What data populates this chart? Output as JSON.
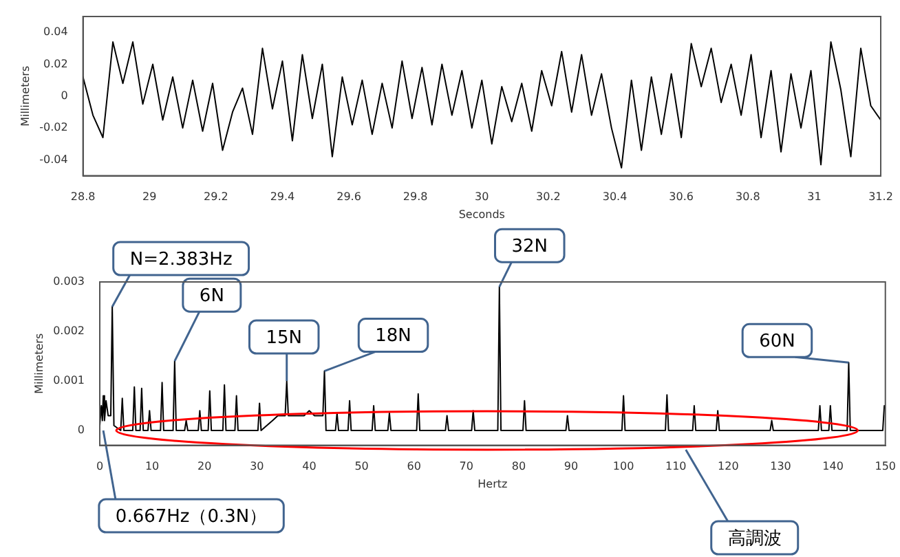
{
  "chart_data": [
    {
      "type": "line",
      "xlabel": "Seconds",
      "ylabel": "Millimeters",
      "color": "#000000",
      "marker": "none",
      "grid": false,
      "legend": false,
      "xlim": [
        28.8,
        31.2
      ],
      "xticks": [
        28.8,
        29,
        29.2,
        29.4,
        29.6,
        29.8,
        30,
        30.2,
        30.4,
        30.6,
        30.8,
        31,
        31.2
      ],
      "ylim": [
        -0.05,
        0.05
      ],
      "yticks": [
        -0.04,
        -0.02,
        0,
        0.02,
        0.04
      ],
      "x": [
        28.8,
        28.83,
        28.86,
        28.89,
        28.92,
        28.95,
        28.98,
        29.01,
        29.04,
        29.07,
        29.1,
        29.13,
        29.16,
        29.19,
        29.22,
        29.25,
        29.28,
        29.31,
        29.34,
        29.37,
        29.4,
        29.43,
        29.46,
        29.49,
        29.52,
        29.55,
        29.58,
        29.61,
        29.64,
        29.67,
        29.7,
        29.73,
        29.76,
        29.79,
        29.82,
        29.85,
        29.88,
        29.91,
        29.94,
        29.97,
        30,
        30.03,
        30.06,
        30.09,
        30.12,
        30.15,
        30.18,
        30.21,
        30.24,
        30.27,
        30.3,
        30.33,
        30.36,
        30.39,
        30.42,
        30.45,
        30.48,
        30.51,
        30.54,
        30.57,
        30.6,
        30.63,
        30.66,
        30.69,
        30.72,
        30.75,
        30.78,
        30.81,
        30.84,
        30.87,
        30.9,
        30.93,
        30.96,
        30.99,
        31.02,
        31.05,
        31.08,
        31.11,
        31.14,
        31.17,
        31.2
      ],
      "values": [
        0.012,
        -0.012,
        -0.026,
        0.034,
        0.008,
        0.034,
        -0.005,
        0.02,
        -0.015,
        0.012,
        -0.02,
        0.01,
        -0.022,
        0.008,
        -0.034,
        -0.01,
        0.005,
        -0.024,
        0.03,
        -0.008,
        0.022,
        -0.028,
        0.026,
        -0.014,
        0.02,
        -0.038,
        0.012,
        -0.018,
        0.01,
        -0.024,
        0.008,
        -0.02,
        0.022,
        -0.014,
        0.018,
        -0.018,
        0.02,
        -0.012,
        0.016,
        -0.02,
        0.01,
        -0.03,
        0.006,
        -0.016,
        0.008,
        -0.022,
        0.016,
        -0.006,
        0.028,
        -0.01,
        0.026,
        -0.012,
        0.014,
        -0.02,
        -0.045,
        0.01,
        -0.034,
        0.012,
        -0.024,
        0.014,
        -0.026,
        0.033,
        0.006,
        0.03,
        -0.004,
        0.02,
        -0.012,
        0.026,
        -0.026,
        0.016,
        -0.035,
        0.014,
        -0.02,
        0.016,
        -0.043,
        0.034,
        0.004,
        -0.038,
        0.03,
        -0.006,
        -0.015
      ]
    },
    {
      "type": "line",
      "xlabel": "Hertz",
      "ylabel": "Millimeters",
      "color": "#000000",
      "marker": "none",
      "grid": false,
      "legend": false,
      "xlim": [
        0,
        150
      ],
      "xticks": [
        0,
        10,
        20,
        30,
        40,
        50,
        60,
        70,
        80,
        90,
        100,
        110,
        120,
        130,
        140,
        150
      ],
      "ylim": [
        -0.0003,
        0.003
      ],
      "yticks": [
        0,
        0.001,
        0.002,
        0.003
      ],
      "x": [
        0,
        0.3,
        0.5,
        0.667,
        0.9,
        1.2,
        1.6,
        2.1,
        2.383,
        2.7,
        4,
        4.3,
        4.6,
        6.3,
        6.6,
        6.9,
        7.7,
        8,
        8.3,
        9.2,
        9.5,
        9.8,
        11.6,
        11.9,
        12.2,
        14,
        14.3,
        14.6,
        16.2,
        16.5,
        16.8,
        18.8,
        19.1,
        19.4,
        20.7,
        21,
        21.3,
        23.5,
        23.8,
        24.1,
        25.8,
        26.1,
        26.4,
        30.2,
        30.5,
        30.8,
        33,
        34,
        35.4,
        35.7,
        36,
        37,
        38,
        39,
        40,
        41,
        42.6,
        42.9,
        43.2,
        45,
        45.3,
        45.6,
        47.4,
        47.7,
        48,
        52,
        52.3,
        52.6,
        55,
        55.3,
        55.6,
        60.5,
        60.8,
        61.1,
        66,
        66.3,
        66.6,
        71,
        71.3,
        71.6,
        76,
        76.3,
        76.6,
        80.8,
        81.1,
        81.4,
        89,
        89.3,
        89.6,
        99.7,
        100,
        100.3,
        108,
        108.3,
        108.6,
        113.2,
        113.5,
        113.8,
        117.7,
        118,
        118.3,
        128,
        128.3,
        128.6,
        137.2,
        137.5,
        137.8,
        139.2,
        139.5,
        139.8,
        142.7,
        143,
        143.3,
        149.5,
        149.8
      ],
      "values": [
        0.0001,
        0.0005,
        0.0002,
        0.0007,
        0.0002,
        0.0006,
        0.0003,
        0.0003,
        0.0025,
        0.0001,
        0,
        0.00065,
        0,
        0,
        0.00088,
        0,
        0,
        0.00085,
        0,
        0,
        0.0004,
        0,
        0,
        0.00097,
        0,
        0,
        0.0014,
        0,
        0,
        0.0002,
        0,
        0,
        0.0004,
        0,
        0,
        0.0008,
        0,
        0,
        0.00092,
        0,
        0,
        0.0007,
        0,
        0,
        0.00055,
        0,
        0.0002,
        0.0003,
        0.0003,
        0.001,
        0.0003,
        0.0003,
        0.0003,
        0.0003,
        0.0004,
        0.0003,
        0.0003,
        0.0012,
        0,
        0,
        0.00035,
        0,
        0,
        0.0006,
        0,
        0,
        0.0005,
        0,
        0,
        0.00035,
        0,
        0,
        0.00074,
        0,
        0,
        0.0003,
        0,
        0,
        0.0004,
        0,
        0,
        0.0029,
        0,
        0,
        0.0006,
        0,
        0,
        0.0003,
        0,
        0,
        0.0007,
        0,
        0,
        0.00072,
        0,
        0,
        0.0005,
        0,
        0,
        0.0004,
        0,
        0,
        0.0002,
        0,
        0,
        0.0005,
        0,
        0,
        0.0005,
        0,
        0,
        0.00137,
        0,
        0,
        0.0005
      ],
      "annotations": [
        {
          "text": "N=2.383Hz",
          "x": 2.383,
          "y": 0.0025
        },
        {
          "text": "6N",
          "x": 14.3,
          "y": 0.0014
        },
        {
          "text": "15N",
          "x": 35.7,
          "y": 0.001
        },
        {
          "text": "18N",
          "x": 42.9,
          "y": 0.0012
        },
        {
          "text": "32N",
          "x": 76.3,
          "y": 0.0029
        },
        {
          "text": "60N",
          "x": 143,
          "y": 0.00137
        },
        {
          "text": "0.667Hz（0.3N）",
          "x": 0.667,
          "y": 0
        },
        "高調波"
      ]
    }
  ]
}
